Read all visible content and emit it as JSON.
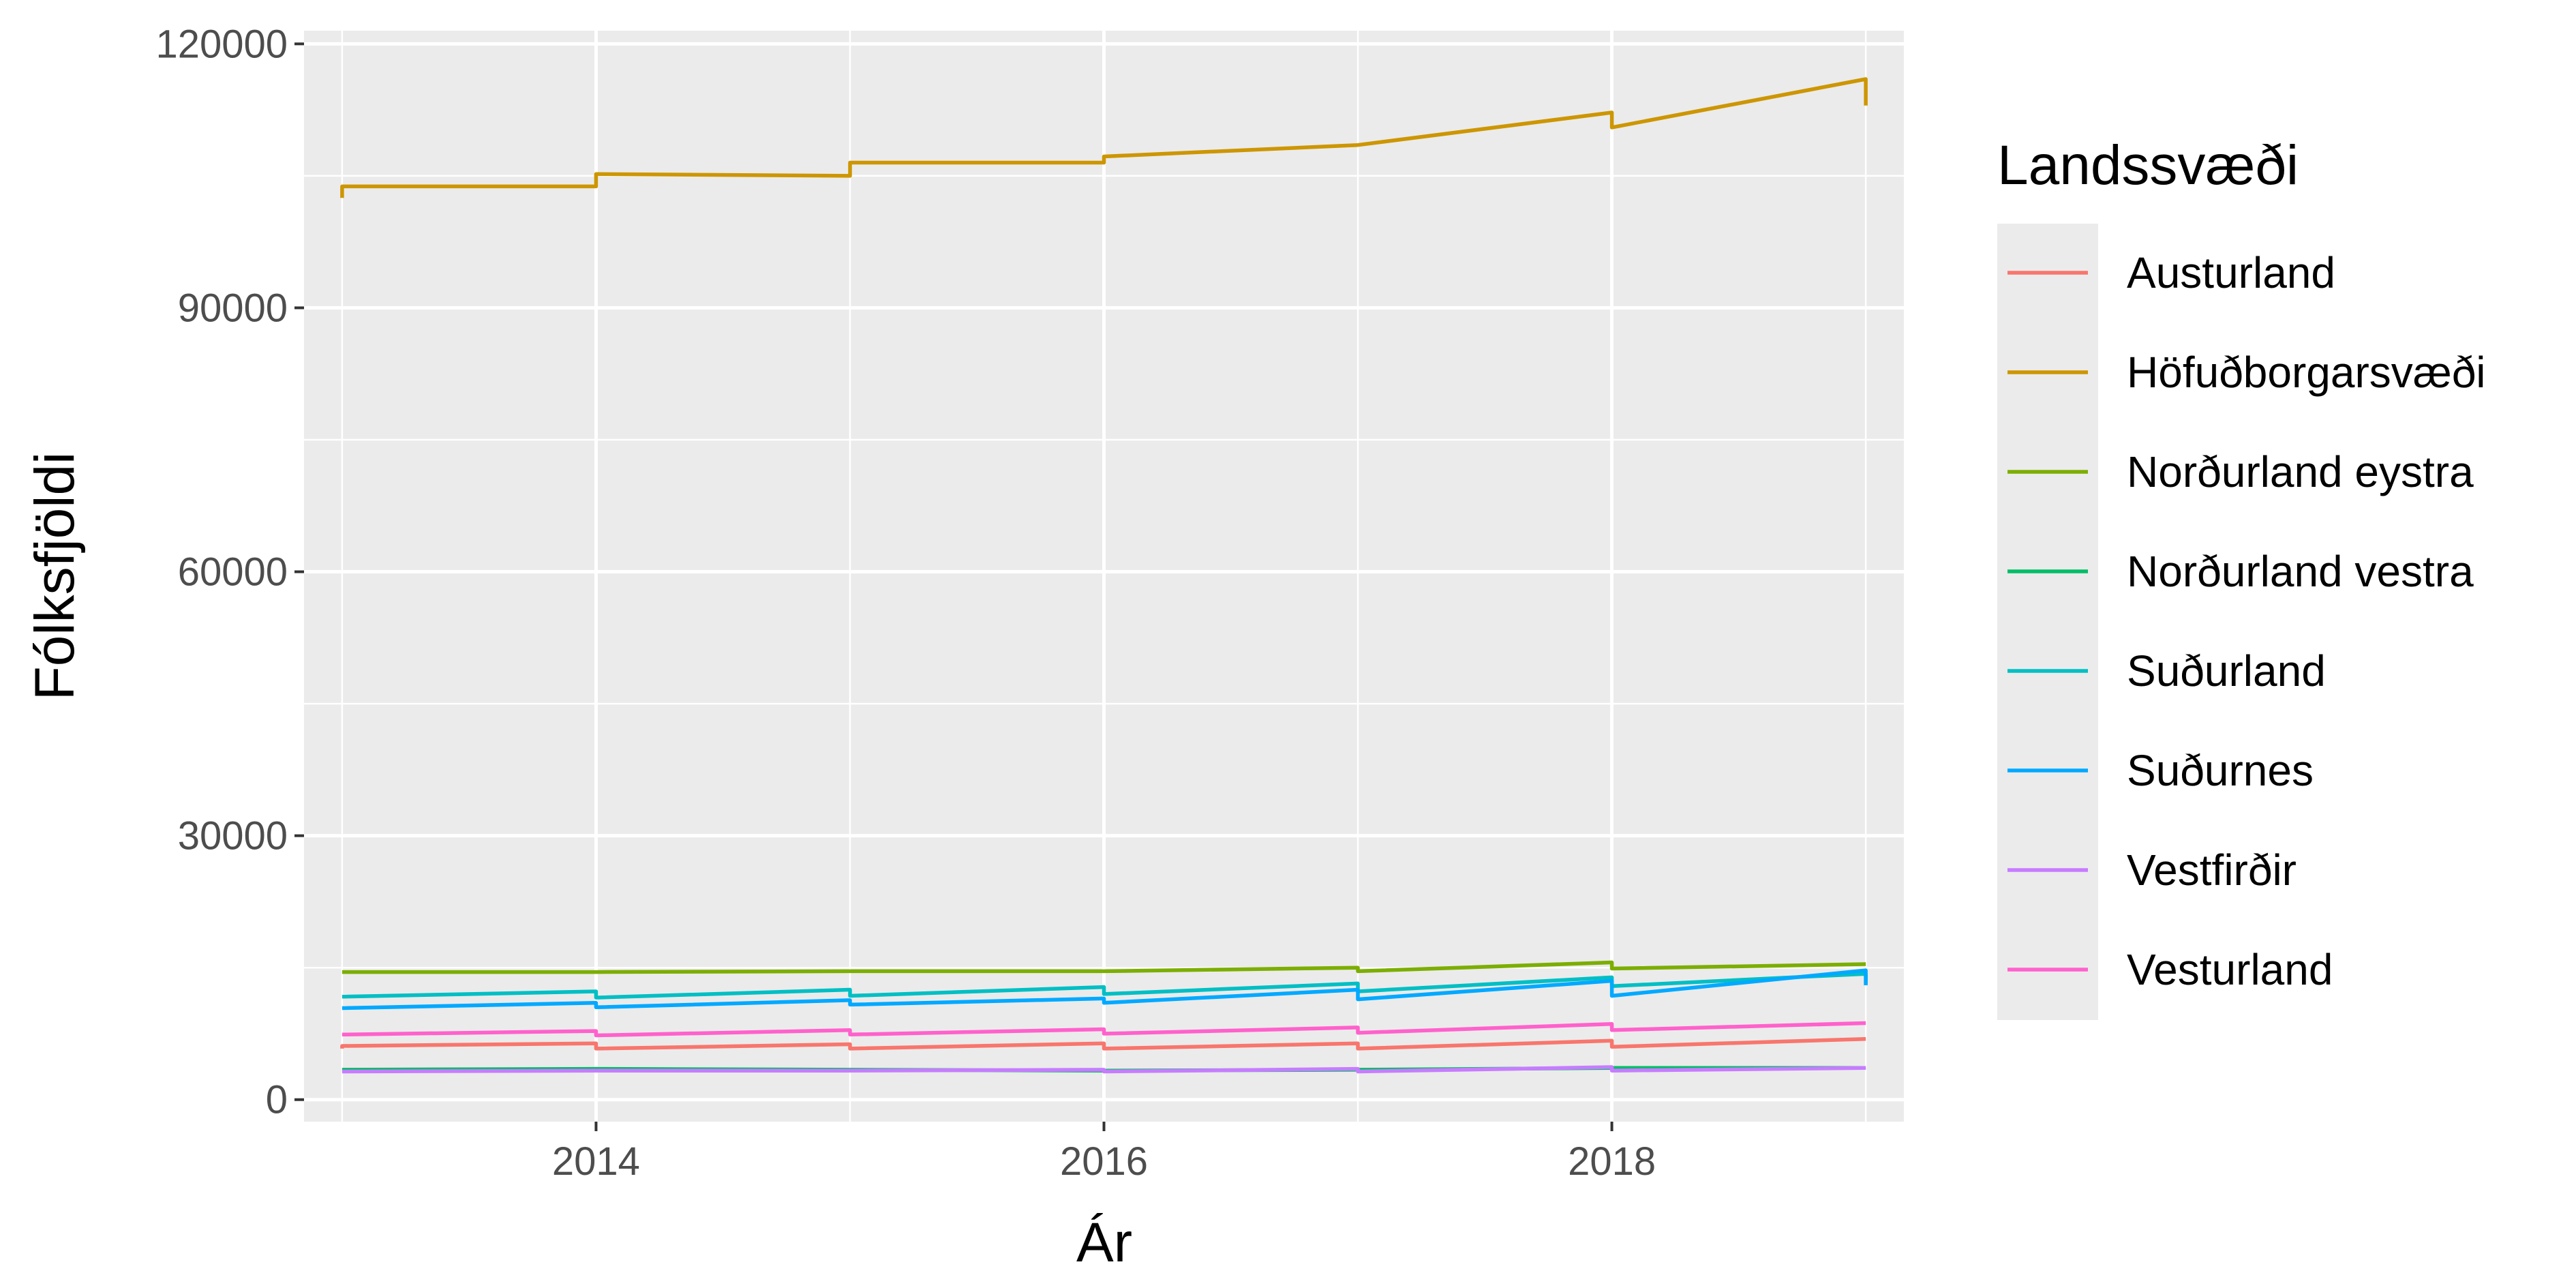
{
  "chart_data": {
    "type": "line",
    "xlabel": "Ár",
    "ylabel": "Fólksfjöldi",
    "xlim": [
      2012.85,
      2019.15
    ],
    "ylim": [
      -2500,
      121500
    ],
    "x_ticks": [
      2014,
      2016,
      2018
    ],
    "y_ticks": [
      0,
      30000,
      60000,
      90000,
      120000
    ],
    "x_tick_labels": [
      "2014",
      "2016",
      "2018"
    ],
    "y_tick_labels": [
      "0",
      "30000",
      "60000",
      "90000",
      "120000"
    ],
    "grid": true,
    "legend": {
      "title": "Landssvæði",
      "position": "right"
    },
    "series": [
      {
        "name": "Austurland",
        "color": "#F8766D",
        "points": [
          [
            2013,
            5800
          ],
          [
            2013,
            6100
          ],
          [
            2014,
            6400
          ],
          [
            2014,
            5800
          ],
          [
            2015,
            6300
          ],
          [
            2015,
            5800
          ],
          [
            2016,
            6400
          ],
          [
            2016,
            5800
          ],
          [
            2017,
            6400
          ],
          [
            2017,
            5800
          ],
          [
            2018,
            6700
          ],
          [
            2018,
            6000
          ],
          [
            2019,
            6900
          ]
        ]
      },
      {
        "name": "Höfuðborgarsvæði",
        "color": "#CD9600",
        "points": [
          [
            2013,
            102500
          ],
          [
            2013,
            103800
          ],
          [
            2014,
            103800
          ],
          [
            2014,
            105200
          ],
          [
            2015,
            105000
          ],
          [
            2015,
            106500
          ],
          [
            2016,
            106500
          ],
          [
            2016,
            107200
          ],
          [
            2017,
            108500
          ],
          [
            2017,
            108500
          ],
          [
            2018,
            112200
          ],
          [
            2018,
            110500
          ],
          [
            2019,
            116000
          ],
          [
            2019,
            113000
          ]
        ]
      },
      {
        "name": "Norðurland eystra",
        "color": "#7CAE00",
        "points": [
          [
            2013,
            14500
          ],
          [
            2014,
            14500
          ],
          [
            2015,
            14600
          ],
          [
            2016,
            14600
          ],
          [
            2017,
            15000
          ],
          [
            2017,
            14600
          ],
          [
            2018,
            15600
          ],
          [
            2018,
            14900
          ],
          [
            2019,
            15400
          ]
        ]
      },
      {
        "name": "Norðurland vestra",
        "color": "#00BE67",
        "points": [
          [
            2013,
            3400
          ],
          [
            2014,
            3500
          ],
          [
            2015,
            3400
          ],
          [
            2016,
            3300
          ],
          [
            2017,
            3400
          ],
          [
            2018,
            3600
          ],
          [
            2019,
            3600
          ]
        ]
      },
      {
        "name": "Suðurland",
        "color": "#00BFC4",
        "points": [
          [
            2013,
            11700
          ],
          [
            2014,
            12300
          ],
          [
            2014,
            11600
          ],
          [
            2015,
            12500
          ],
          [
            2015,
            11800
          ],
          [
            2016,
            12800
          ],
          [
            2016,
            12000
          ],
          [
            2017,
            13200
          ],
          [
            2017,
            12300
          ],
          [
            2018,
            13900
          ],
          [
            2018,
            12900
          ],
          [
            2019,
            14300
          ],
          [
            2019,
            13200
          ]
        ]
      },
      {
        "name": "Suðurnes",
        "color": "#00A9FF",
        "points": [
          [
            2013,
            10400
          ],
          [
            2014,
            11000
          ],
          [
            2014,
            10500
          ],
          [
            2015,
            11300
          ],
          [
            2015,
            10800
          ],
          [
            2016,
            11500
          ],
          [
            2016,
            11000
          ],
          [
            2017,
            12500
          ],
          [
            2017,
            11400
          ],
          [
            2018,
            13500
          ],
          [
            2018,
            11800
          ],
          [
            2019,
            14700
          ],
          [
            2019,
            13000
          ]
        ]
      },
      {
        "name": "Vestfirðir",
        "color": "#C77CFF",
        "points": [
          [
            2013,
            3200
          ],
          [
            2014,
            3300
          ],
          [
            2015,
            3300
          ],
          [
            2016,
            3400
          ],
          [
            2016,
            3200
          ],
          [
            2017,
            3500
          ],
          [
            2017,
            3200
          ],
          [
            2018,
            3700
          ],
          [
            2018,
            3300
          ],
          [
            2019,
            3600
          ]
        ]
      },
      {
        "name": "Vesturland",
        "color": "#FF61CC",
        "points": [
          [
            2013,
            7400
          ],
          [
            2014,
            7800
          ],
          [
            2014,
            7300
          ],
          [
            2015,
            7900
          ],
          [
            2015,
            7400
          ],
          [
            2016,
            8000
          ],
          [
            2016,
            7500
          ],
          [
            2017,
            8200
          ],
          [
            2017,
            7600
          ],
          [
            2018,
            8600
          ],
          [
            2018,
            7900
          ],
          [
            2019,
            8700
          ]
        ]
      }
    ]
  }
}
